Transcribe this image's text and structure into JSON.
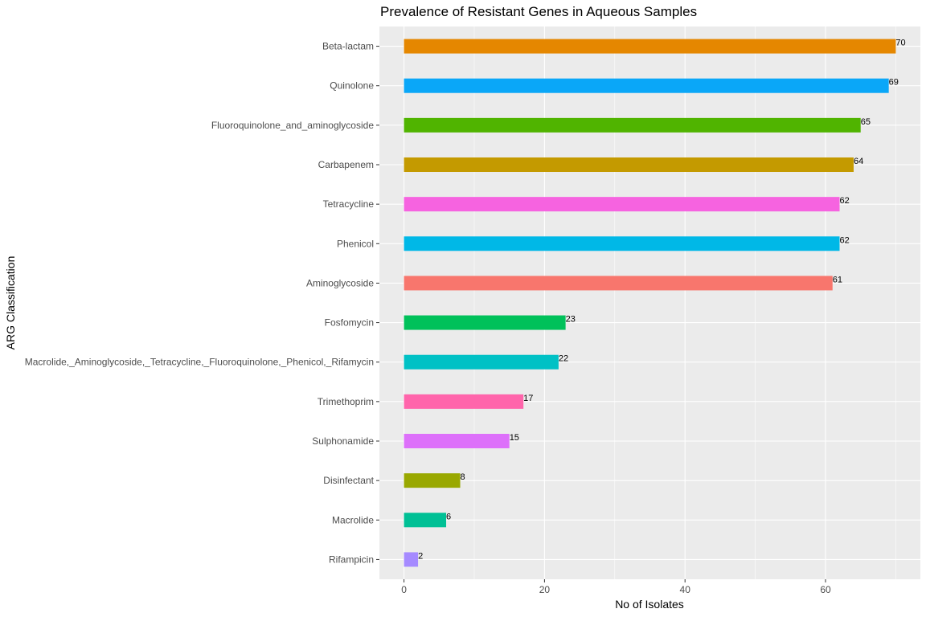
{
  "chart_data": {
    "type": "bar",
    "orientation": "horizontal",
    "title": "Prevalence of Resistant Genes in Aqueous Samples",
    "xlabel": "No of Isolates",
    "ylabel": "ARG Classification",
    "xlim": [
      -3.5,
      73.5
    ],
    "xticks": [
      0,
      20,
      40,
      60
    ],
    "grid": true,
    "legend": "none",
    "panel_background": "#ebebeb",
    "categories": [
      "Beta-lactam",
      "Quinolone",
      "Fluoroquinolone_and_aminoglycoside",
      "Carbapenem",
      "Tetracycline",
      "Phenicol",
      "Aminoglycoside",
      "Fosfomycin",
      "Macrolide,_Aminoglycoside,_Tetracycline,_Fluoroquinolone,_Phenicol,_Rifamycin",
      "Trimethoprim",
      "Sulphonamide",
      "Disinfectant",
      "Macrolide",
      "Rifampicin"
    ],
    "values": [
      70,
      69,
      65,
      64,
      62,
      62,
      61,
      23,
      22,
      17,
      15,
      8,
      6,
      2
    ],
    "colors": [
      "#e58700",
      "#0aa7f8",
      "#50b400",
      "#c49a00",
      "#f663e0",
      "#00b8e7",
      "#f8766d",
      "#00c15a",
      "#00c1c5",
      "#ff65ab",
      "#dd70fa",
      "#99a800",
      "#00c095",
      "#a58aff"
    ]
  }
}
